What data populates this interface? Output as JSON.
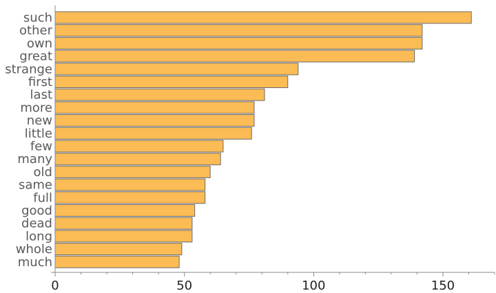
{
  "chart_data": {
    "type": "bar",
    "orientation": "horizontal",
    "categories": [
      "such",
      "other",
      "own",
      "great",
      "strange",
      "first",
      "last",
      "more",
      "new",
      "little",
      "few",
      "many",
      "old",
      "same",
      "full",
      "good",
      "dead",
      "long",
      "whole",
      "much"
    ],
    "values": [
      161,
      142,
      142,
      139,
      94,
      90,
      81,
      77,
      77,
      76,
      65,
      64,
      60,
      58,
      58,
      54,
      53,
      53,
      49,
      48
    ],
    "xlim": [
      0,
      170
    ],
    "xticks": [
      0,
      50,
      100,
      150
    ],
    "xtick_labels": [
      "0",
      "50",
      "100",
      "150"
    ],
    "title": "",
    "xlabel": "",
    "ylabel": "",
    "grid": false,
    "legend": "none",
    "colors": {
      "bar_fill": "#fbbb55",
      "bar_stroke": "#6b6b6b",
      "axis": "#888888",
      "category_text": "#5a5a5a",
      "tick_text": "#222222"
    }
  }
}
